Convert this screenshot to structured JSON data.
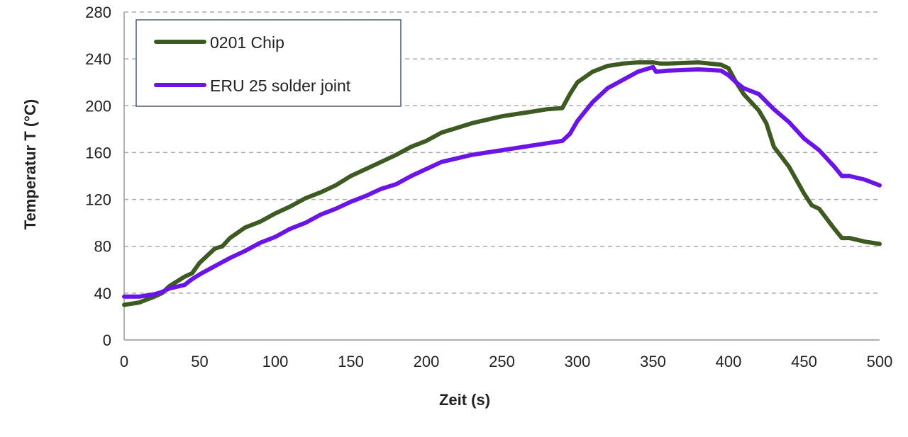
{
  "chart_data": {
    "type": "line",
    "title": "",
    "xlabel": "Zeit (s)",
    "ylabel": "Temperatur T (°C)",
    "xlim": [
      0,
      500
    ],
    "ylim": [
      0,
      280
    ],
    "xticks": [
      0,
      50,
      100,
      150,
      200,
      250,
      300,
      350,
      400,
      450,
      500
    ],
    "yticks": [
      0,
      40,
      80,
      120,
      160,
      200,
      240,
      280
    ],
    "grid": "horizontal dashed",
    "legend_position": "top-left",
    "series": [
      {
        "name": "0201 Chip",
        "color": "#3d5a22",
        "x": [
          0,
          10,
          20,
          25,
          30,
          40,
          45,
          50,
          60,
          65,
          70,
          80,
          90,
          100,
          110,
          120,
          130,
          140,
          150,
          160,
          170,
          180,
          190,
          200,
          210,
          220,
          230,
          240,
          250,
          260,
          270,
          280,
          290,
          295,
          300,
          310,
          320,
          330,
          340,
          350,
          355,
          360,
          380,
          395,
          400,
          405,
          410,
          415,
          420,
          425,
          430,
          440,
          450,
          455,
          460,
          470,
          475,
          480,
          490,
          500
        ],
        "y": [
          30,
          32,
          37,
          40,
          46,
          54,
          57,
          66,
          78,
          80,
          87,
          96,
          101,
          108,
          114,
          121,
          126,
          132,
          140,
          146,
          152,
          158,
          165,
          170,
          177,
          181,
          185,
          188,
          191,
          193,
          195,
          197,
          198,
          210,
          220,
          229,
          234,
          236,
          237,
          237,
          236,
          236,
          237,
          235,
          232,
          220,
          210,
          203,
          196,
          185,
          165,
          148,
          125,
          115,
          112,
          95,
          87,
          87,
          84,
          82
        ]
      },
      {
        "name": "ERU 25 solder joint",
        "color": "#6a14e6",
        "x": [
          0,
          10,
          20,
          25,
          30,
          40,
          45,
          50,
          60,
          70,
          80,
          90,
          100,
          110,
          120,
          130,
          140,
          150,
          160,
          170,
          180,
          190,
          200,
          210,
          220,
          230,
          240,
          250,
          260,
          270,
          280,
          290,
          295,
          300,
          310,
          320,
          330,
          340,
          350,
          352,
          360,
          380,
          395,
          400,
          405,
          410,
          420,
          430,
          440,
          450,
          460,
          470,
          475,
          480,
          490,
          500
        ],
        "y": [
          37,
          37,
          39,
          41,
          44,
          47,
          52,
          56,
          63,
          70,
          76,
          83,
          88,
          95,
          100,
          107,
          112,
          118,
          123,
          129,
          133,
          140,
          146,
          152,
          155,
          158,
          160,
          162,
          164,
          166,
          168,
          170,
          176,
          187,
          203,
          215,
          222,
          229,
          233,
          229,
          230,
          231,
          230,
          226,
          220,
          215,
          210,
          197,
          186,
          172,
          162,
          148,
          140,
          140,
          137,
          132
        ]
      }
    ]
  }
}
